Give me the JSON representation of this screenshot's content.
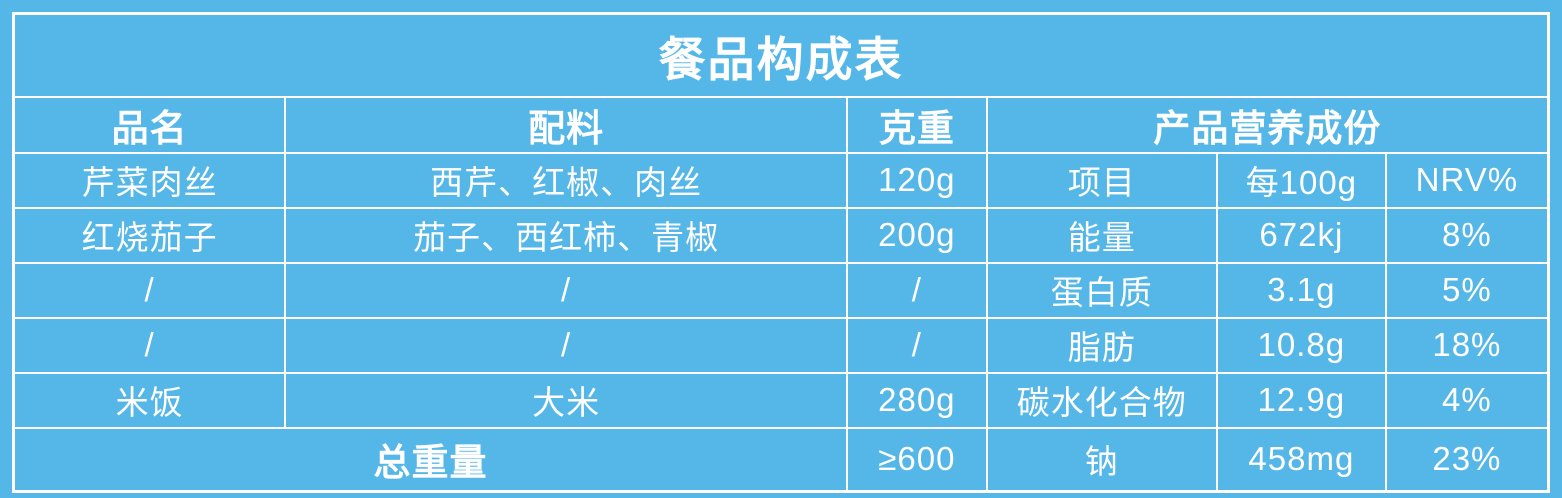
{
  "colors": {
    "background": "#55b6e8",
    "border": "#ffffff",
    "text": "#ffffff"
  },
  "table": {
    "title": "餐品构成表",
    "headers": {
      "name": "品名",
      "ingredients": "配料",
      "weight": "克重",
      "nutrition": "产品营养成份"
    },
    "nutrition_subheader": {
      "item": "项目",
      "per_100g": "每100g",
      "nrv": "NRV%"
    },
    "meal_rows": [
      {
        "name": "芹菜肉丝",
        "ingredients": "西芹、红椒、肉丝",
        "weight": "120g"
      },
      {
        "name": "红烧茄子",
        "ingredients": "茄子、西红柿、青椒",
        "weight": "200g"
      },
      {
        "name": "/",
        "ingredients": "/",
        "weight": "/"
      },
      {
        "name": "/",
        "ingredients": "/",
        "weight": "/"
      },
      {
        "name": "米饭",
        "ingredients": "大米",
        "weight": "280g"
      }
    ],
    "nutrition_rows": [
      {
        "item": "能量",
        "per_100g": "672kj",
        "nrv": "8%"
      },
      {
        "item": "蛋白质",
        "per_100g": "3.1g",
        "nrv": "5%"
      },
      {
        "item": "脂肪",
        "per_100g": "10.8g",
        "nrv": "18%"
      },
      {
        "item": "碳水化合物",
        "per_100g": "12.9g",
        "nrv": "4%"
      },
      {
        "item": "钠",
        "per_100g": "458mg",
        "nrv": "23%"
      }
    ],
    "total": {
      "label": "总重量",
      "weight": "≥600"
    }
  }
}
